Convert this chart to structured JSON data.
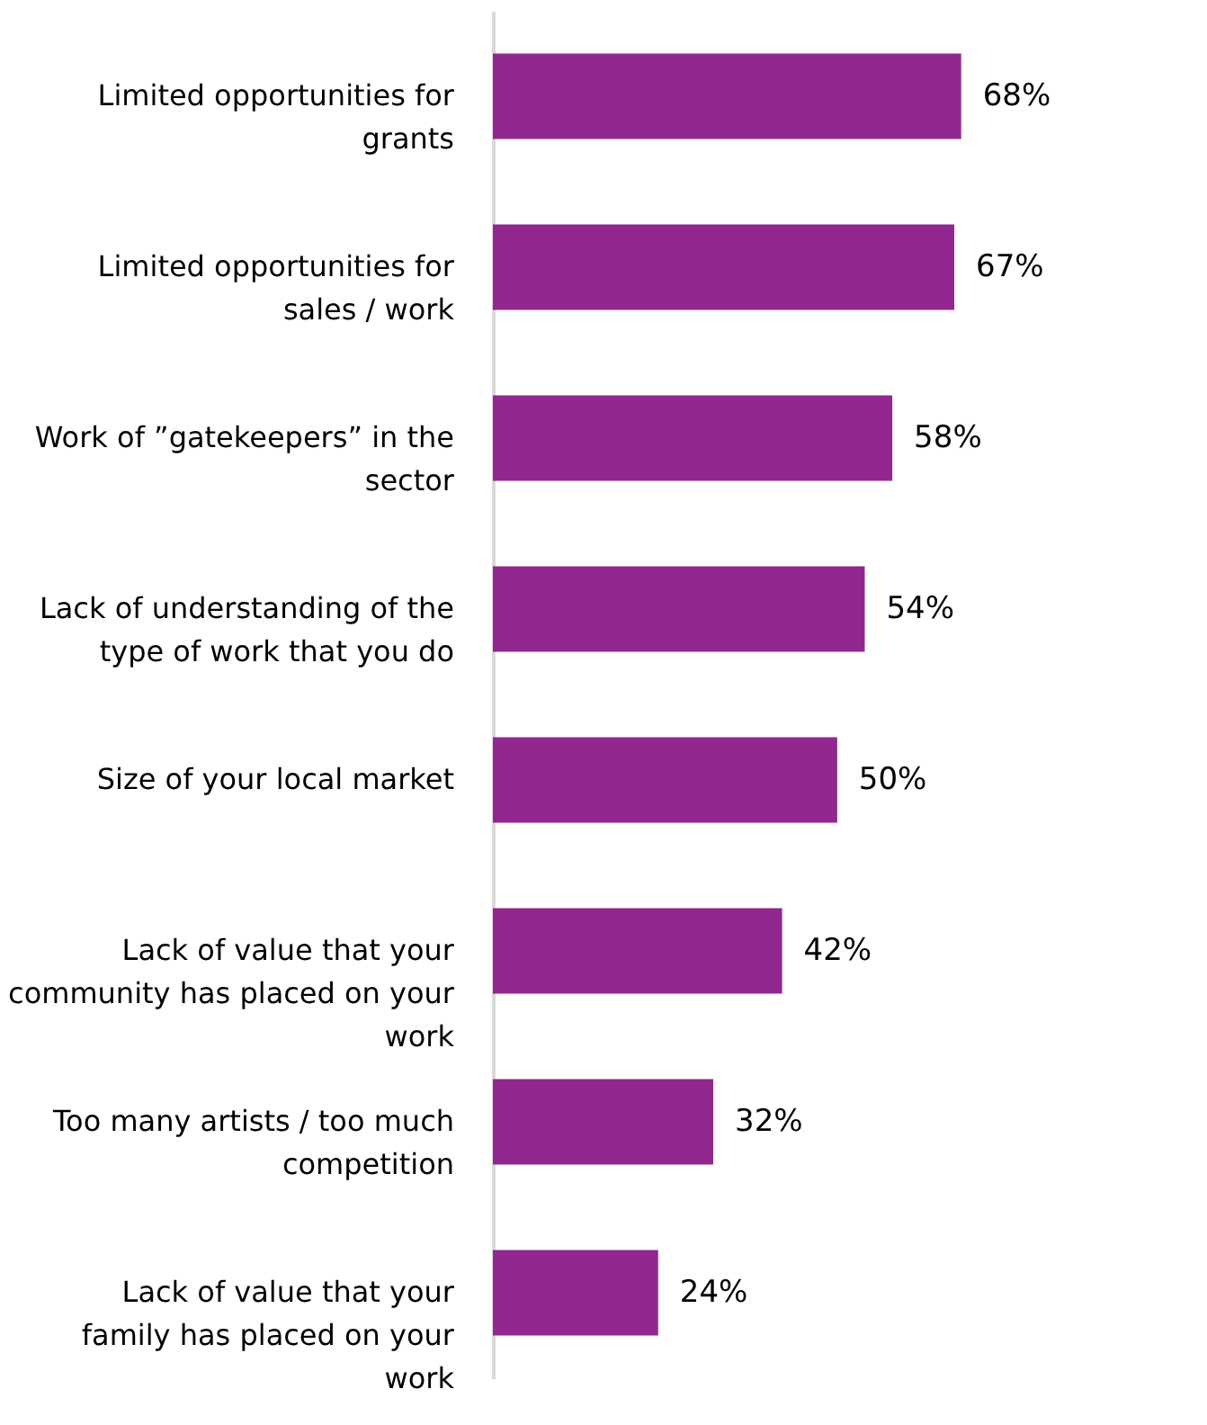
{
  "chart_data": {
    "type": "bar",
    "orientation": "horizontal",
    "categories": [
      "Limited opportunities for grants",
      "Limited opportunities for sales / work",
      "Work of ”gatekeepers” in the sector",
      "Lack of understanding of the type of work that you do",
      "Size of your local market",
      "Lack of value that your community has placed on your work",
      "Too many artists / too much competition",
      "Lack of value that your family has placed on your work"
    ],
    "values": [
      68,
      67,
      58,
      54,
      50,
      42,
      32,
      24
    ],
    "value_labels": [
      "68%",
      "67%",
      "58%",
      "54%",
      "50%",
      "42%",
      "32%",
      "24%"
    ],
    "color": "#92278f",
    "tick_labels": "y",
    "grid": false
  }
}
